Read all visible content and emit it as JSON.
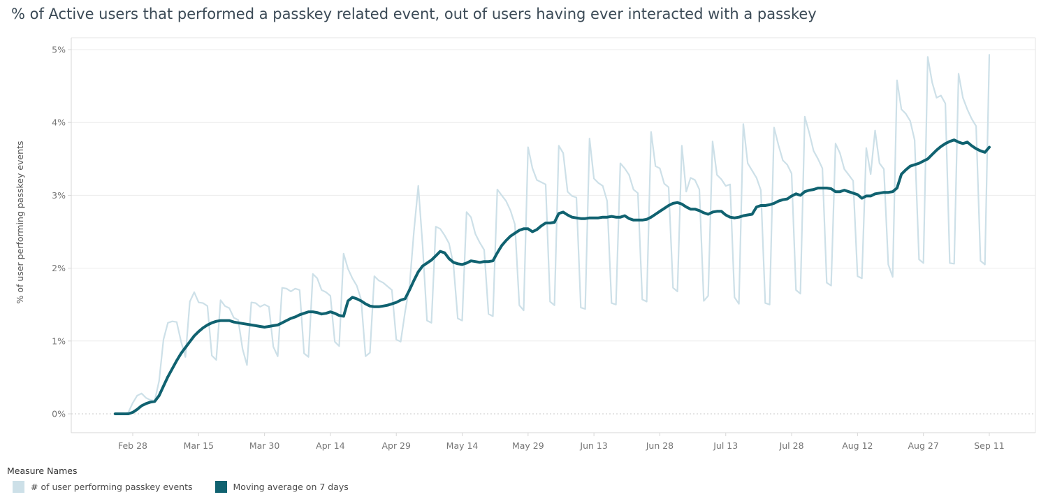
{
  "title": "% of Active users that performed a passkey related event, out of users having ever interacted with a passkey",
  "legend": {
    "title": "Measure Names",
    "items": [
      {
        "label": "# of user performing passkey events",
        "color": "#cde0e8"
      },
      {
        "label": "Moving average on 7 days",
        "color": "#106270"
      }
    ]
  },
  "chart_data": {
    "type": "line",
    "title": "% of Active users that performed a passkey related event, out of users having ever interacted with a passkey",
    "xlabel": "",
    "ylabel": "% of user performing passkey events",
    "ylim": [
      0,
      5
    ],
    "grid": "horizontal",
    "legend_position": "bottom-left",
    "x_unit": "day (one point per day, index 0 = Feb 24)",
    "y_ticks": [
      {
        "value": 0,
        "label": "0%"
      },
      {
        "value": 1,
        "label": "1%"
      },
      {
        "value": 2,
        "label": "2%"
      },
      {
        "value": 3,
        "label": "3%"
      },
      {
        "value": 4,
        "label": "4%"
      },
      {
        "value": 5,
        "label": "5%"
      }
    ],
    "x_ticks": [
      {
        "index": 4,
        "label": "Feb 28"
      },
      {
        "index": 19,
        "label": "Mar 15"
      },
      {
        "index": 34,
        "label": "Mar 30"
      },
      {
        "index": 49,
        "label": "Apr 14"
      },
      {
        "index": 64,
        "label": "Apr 29"
      },
      {
        "index": 79,
        "label": "May 14"
      },
      {
        "index": 94,
        "label": "May 29"
      },
      {
        "index": 109,
        "label": "Jun 13"
      },
      {
        "index": 124,
        "label": "Jun 28"
      },
      {
        "index": 139,
        "label": "Jul 13"
      },
      {
        "index": 154,
        "label": "Jul 28"
      },
      {
        "index": 169,
        "label": "Aug 12"
      },
      {
        "index": 184,
        "label": "Aug 27"
      },
      {
        "index": 199,
        "label": "Sep 11"
      }
    ],
    "series": [
      {
        "name": "# of user performing passkey events",
        "color": "#cde0e8",
        "width": 2.2,
        "data_name": "daily-series-line",
        "values": [
          0,
          0,
          0,
          0.02,
          0.15,
          0.25,
          0.28,
          0.22,
          0.19,
          0.18,
          0.45,
          1.02,
          1.25,
          1.27,
          1.26,
          0.99,
          0.78,
          1.54,
          1.67,
          1.53,
          1.52,
          1.48,
          0.8,
          0.74,
          1.56,
          1.48,
          1.45,
          1.32,
          1.29,
          0.89,
          0.67,
          1.53,
          1.52,
          1.47,
          1.5,
          1.47,
          0.92,
          0.79,
          1.73,
          1.72,
          1.68,
          1.72,
          1.7,
          0.83,
          0.78,
          1.92,
          1.86,
          1.7,
          1.67,
          1.62,
          0.99,
          0.93,
          2.2,
          1.99,
          1.86,
          1.76,
          1.57,
          0.79,
          0.84,
          1.89,
          1.83,
          1.8,
          1.75,
          1.7,
          1.02,
          0.99,
          1.4,
          1.75,
          2.5,
          3.13,
          2.31,
          1.28,
          1.25,
          2.57,
          2.54,
          2.45,
          2.34,
          2.05,
          1.31,
          1.28,
          2.77,
          2.7,
          2.47,
          2.35,
          2.25,
          1.37,
          1.34,
          3.08,
          3,
          2.92,
          2.79,
          2.6,
          1.49,
          1.42,
          3.66,
          3.37,
          3.21,
          3.18,
          3.15,
          1.54,
          1.49,
          3.68,
          3.58,
          3.05,
          2.99,
          2.97,
          1.46,
          1.44,
          3.78,
          3.23,
          3.17,
          3.13,
          2.92,
          1.52,
          1.5,
          3.44,
          3.37,
          3.28,
          3.08,
          3.03,
          1.57,
          1.54,
          3.87,
          3.4,
          3.37,
          3.16,
          3.11,
          1.73,
          1.68,
          3.68,
          3.05,
          3.24,
          3.21,
          3.08,
          1.55,
          1.62,
          3.74,
          3.28,
          3.22,
          3.13,
          3.15,
          1.6,
          1.51,
          3.98,
          3.44,
          3.34,
          3.24,
          3.07,
          1.52,
          1.5,
          3.93,
          3.69,
          3.48,
          3.42,
          3.3,
          1.7,
          1.65,
          4.08,
          3.86,
          3.61,
          3.5,
          3.37,
          1.8,
          1.76,
          3.71,
          3.58,
          3.36,
          3.28,
          3.2,
          1.89,
          1.86,
          3.65,
          3.29,
          3.89,
          3.44,
          3.36,
          2.05,
          1.88,
          4.58,
          4.18,
          4.12,
          4.02,
          3.76,
          2.12,
          2.07,
          4.9,
          4.55,
          4.34,
          4.37,
          4.26,
          2.07,
          2.06,
          4.67,
          4.34,
          4.18,
          4.05,
          3.95,
          2.1,
          2.05,
          4.93
        ]
      },
      {
        "name": "Moving average on 7 days",
        "color": "#106270",
        "width": 4,
        "data_name": "moving-average-line",
        "values": [
          0,
          0,
          0,
          0,
          0.02,
          0.06,
          0.11,
          0.14,
          0.16,
          0.17,
          0.25,
          0.38,
          0.51,
          0.62,
          0.73,
          0.83,
          0.91,
          0.99,
          1.07,
          1.13,
          1.18,
          1.22,
          1.25,
          1.27,
          1.28,
          1.28,
          1.28,
          1.26,
          1.25,
          1.24,
          1.23,
          1.22,
          1.21,
          1.2,
          1.19,
          1.2,
          1.21,
          1.22,
          1.25,
          1.28,
          1.31,
          1.33,
          1.36,
          1.38,
          1.4,
          1.4,
          1.39,
          1.37,
          1.38,
          1.4,
          1.38,
          1.35,
          1.34,
          1.55,
          1.6,
          1.58,
          1.55,
          1.51,
          1.48,
          1.47,
          1.47,
          1.48,
          1.49,
          1.51,
          1.53,
          1.56,
          1.58,
          1.7,
          1.83,
          1.95,
          2.03,
          2.07,
          2.11,
          2.17,
          2.23,
          2.21,
          2.13,
          2.08,
          2.06,
          2.05,
          2.07,
          2.1,
          2.09,
          2.08,
          2.09,
          2.09,
          2.1,
          2.21,
          2.31,
          2.38,
          2.44,
          2.48,
          2.52,
          2.54,
          2.54,
          2.5,
          2.53,
          2.58,
          2.62,
          2.62,
          2.63,
          2.75,
          2.77,
          2.73,
          2.7,
          2.69,
          2.68,
          2.68,
          2.69,
          2.69,
          2.69,
          2.7,
          2.7,
          2.71,
          2.7,
          2.7,
          2.72,
          2.68,
          2.66,
          2.66,
          2.66,
          2.67,
          2.7,
          2.74,
          2.78,
          2.82,
          2.86,
          2.89,
          2.9,
          2.88,
          2.84,
          2.81,
          2.81,
          2.79,
          2.76,
          2.74,
          2.77,
          2.78,
          2.78,
          2.73,
          2.7,
          2.69,
          2.7,
          2.72,
          2.73,
          2.74,
          2.84,
          2.86,
          2.86,
          2.87,
          2.89,
          2.92,
          2.94,
          2.95,
          2.99,
          3.02,
          3,
          3.05,
          3.07,
          3.08,
          3.1,
          3.1,
          3.1,
          3.09,
          3.05,
          3.05,
          3.07,
          3.05,
          3.03,
          3.01,
          2.96,
          2.99,
          2.99,
          3.02,
          3.03,
          3.04,
          3.04,
          3.05,
          3.1,
          3.29,
          3.35,
          3.4,
          3.42,
          3.44,
          3.47,
          3.5,
          3.56,
          3.62,
          3.67,
          3.71,
          3.74,
          3.76,
          3.73,
          3.71,
          3.73,
          3.68,
          3.64,
          3.61,
          3.59,
          3.66
        ]
      }
    ]
  }
}
